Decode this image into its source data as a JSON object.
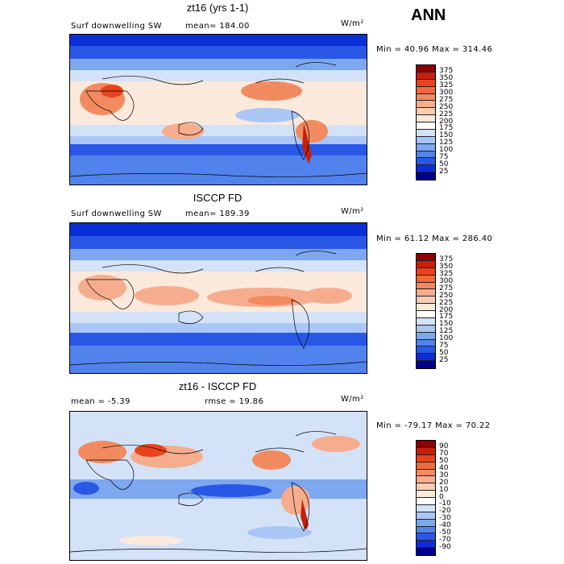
{
  "header": {
    "season": "ANN"
  },
  "panels": [
    {
      "title": "zt16 (yrs 1-1)",
      "left_label": "Surf downwelling SW",
      "stat1": "mean=  184.00",
      "stat2": "",
      "units": "W/m²",
      "minmax": "Min =  40.96 Max = 314.46",
      "levels": [
        "375",
        "350",
        "325",
        "300",
        "275",
        "250",
        "225",
        "200",
        "175",
        "150",
        "125",
        "100",
        "75",
        "50",
        "25"
      ],
      "colors": [
        "#8b0000",
        "#c81e0a",
        "#e8431a",
        "#f06a3c",
        "#f28a60",
        "#f6ad8e",
        "#f9cdb6",
        "#fbe9dc",
        "#ffffff",
        "#d4e2f8",
        "#aac6f4",
        "#7da7ef",
        "#5283ec",
        "#2958e6",
        "#0a2fd6",
        "#00008b"
      ]
    },
    {
      "title": "ISCCP FD",
      "left_label": "Surf downwelling SW",
      "stat1": "mean=  189.39",
      "stat2": "",
      "units": "W/m²",
      "minmax": "Min =  61.12 Max = 286.40",
      "levels": [
        "375",
        "350",
        "325",
        "300",
        "275",
        "250",
        "225",
        "200",
        "175",
        "150",
        "125",
        "100",
        "75",
        "50",
        "25"
      ],
      "colors": [
        "#8b0000",
        "#c81e0a",
        "#e8431a",
        "#f06a3c",
        "#f28a60",
        "#f6ad8e",
        "#f9cdb6",
        "#fbe9dc",
        "#ffffff",
        "#d4e2f8",
        "#aac6f4",
        "#7da7ef",
        "#5283ec",
        "#2958e6",
        "#0a2fd6",
        "#00008b"
      ]
    },
    {
      "title": "zt16 - ISCCP FD",
      "left_label": "mean =  -5.39",
      "stat1": "",
      "stat2": "rmse =  19.86",
      "units": "W/m²",
      "minmax": "Min = -79.17 Max =  70.22",
      "levels": [
        "90",
        "70",
        "50",
        "40",
        "30",
        "20",
        "10",
        "0",
        "-10",
        "-20",
        "-30",
        "-40",
        "-50",
        "-70",
        "-90"
      ],
      "colors": [
        "#8b0000",
        "#c81e0a",
        "#e8431a",
        "#f06a3c",
        "#f28a60",
        "#f6ad8e",
        "#f9cdb6",
        "#fbe9dc",
        "#ffffff",
        "#d4e2f8",
        "#aac6f4",
        "#7da7ef",
        "#5283ec",
        "#2958e6",
        "#0a2fd6",
        "#00008b"
      ]
    }
  ],
  "chart_data": [
    {
      "type": "heatmap",
      "title": "zt16 (yrs 1-1)",
      "variable": "Surf downwelling SW",
      "units": "W/m²",
      "mean": 184.0,
      "min": 40.96,
      "max": 314.46,
      "contour_levels": [
        25,
        50,
        75,
        100,
        125,
        150,
        175,
        200,
        225,
        250,
        275,
        300,
        325,
        350,
        375
      ]
    },
    {
      "type": "heatmap",
      "title": "ISCCP FD",
      "variable": "Surf downwelling SW",
      "units": "W/m²",
      "mean": 189.39,
      "min": 61.12,
      "max": 286.4,
      "contour_levels": [
        25,
        50,
        75,
        100,
        125,
        150,
        175,
        200,
        225,
        250,
        275,
        300,
        325,
        350,
        375
      ]
    },
    {
      "type": "heatmap",
      "title": "zt16 - ISCCP FD",
      "units": "W/m²",
      "mean": -5.39,
      "rmse": 19.86,
      "min": -79.17,
      "max": 70.22,
      "contour_levels": [
        -90,
        -70,
        -50,
        -40,
        -30,
        -20,
        -10,
        0,
        10,
        20,
        30,
        40,
        50,
        70,
        90
      ]
    }
  ]
}
